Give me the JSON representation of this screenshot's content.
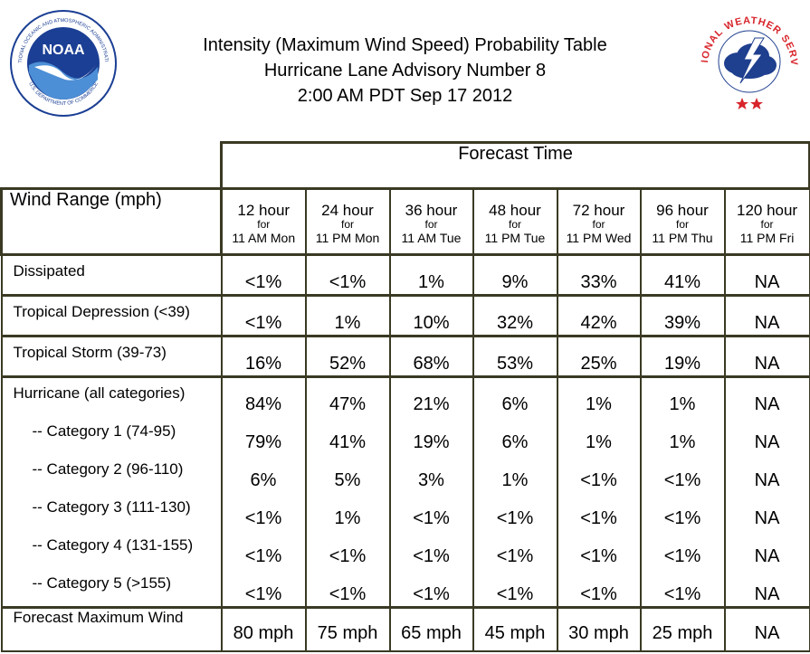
{
  "header": {
    "title_lines": [
      "Intensity (Maximum Wind Speed) Probability Table",
      "Hurricane Lane Advisory Number 8",
      "2:00 AM PDT Sep 17 2012"
    ],
    "noaa_logo": {
      "icon": "noaa-logo-icon",
      "center_text": "NOAA",
      "ring_text_top": "NATIONAL OCEANIC AND ATMOSPHERIC ADMINISTRATION",
      "ring_text_bottom": "U.S. DEPARTMENT OF COMMERCE"
    },
    "nws_logo": {
      "icon": "nws-logo-icon",
      "ring_text": "NATIONAL WEATHER SERVICE"
    }
  },
  "table": {
    "forecast_time_label": "Forecast Time",
    "wind_range_label": "Wind Range (mph)",
    "columns": [
      {
        "hours": "12 hour",
        "for": "for",
        "when": "11 AM Mon"
      },
      {
        "hours": "24 hour",
        "for": "for",
        "when": "11 PM Mon"
      },
      {
        "hours": "36 hour",
        "for": "for",
        "when": "11 AM Tue"
      },
      {
        "hours": "48 hour",
        "for": "for",
        "when": "11 PM Tue"
      },
      {
        "hours": "72 hour",
        "for": "for",
        "when": "11 PM Wed"
      },
      {
        "hours": "96 hour",
        "for": "for",
        "when": "11 PM Thu"
      },
      {
        "hours": "120 hour",
        "for": "for",
        "when": "11 PM Fri"
      }
    ],
    "rows": [
      {
        "label": "Dissipated",
        "values": [
          "<1%",
          "<1%",
          "1%",
          "9%",
          "33%",
          "41%",
          "NA"
        ]
      },
      {
        "label": "Tropical Depression (<39)",
        "values": [
          "<1%",
          "1%",
          "10%",
          "32%",
          "42%",
          "39%",
          "NA"
        ]
      },
      {
        "label": "Tropical Storm (39-73)",
        "values": [
          "16%",
          "52%",
          "68%",
          "53%",
          "25%",
          "19%",
          "NA"
        ]
      }
    ],
    "hurricane_group": [
      {
        "label": "Hurricane (all categories)",
        "values": [
          "84%",
          "47%",
          "21%",
          "6%",
          "1%",
          "1%",
          "NA"
        ]
      },
      {
        "label": "-- Category 1 (74-95)",
        "values": [
          "79%",
          "41%",
          "19%",
          "6%",
          "1%",
          "1%",
          "NA"
        ]
      },
      {
        "label": "-- Category 2 (96-110)",
        "values": [
          "6%",
          "5%",
          "3%",
          "1%",
          "<1%",
          "<1%",
          "NA"
        ]
      },
      {
        "label": "-- Category 3 (111-130)",
        "values": [
          "<1%",
          "1%",
          "<1%",
          "<1%",
          "<1%",
          "<1%",
          "NA"
        ]
      },
      {
        "label": "-- Category 4 (131-155)",
        "values": [
          "<1%",
          "<1%",
          "<1%",
          "<1%",
          "<1%",
          "<1%",
          "NA"
        ]
      },
      {
        "label": "-- Category 5 (>155)",
        "values": [
          "<1%",
          "<1%",
          "<1%",
          "<1%",
          "<1%",
          "<1%",
          "NA"
        ]
      }
    ],
    "forecast_max_wind": {
      "label": "Forecast Maximum Wind",
      "values": [
        "80 mph",
        "75 mph",
        "65 mph",
        "45 mph",
        "30 mph",
        "25 mph",
        "NA"
      ]
    }
  },
  "colors": {
    "border": "#3a3a24",
    "noaa_blue": "#1b3f94",
    "noaa_light": "#4d8fd6",
    "nws_red": "#d8242b",
    "nws_cloud": "#1f3f8f"
  }
}
